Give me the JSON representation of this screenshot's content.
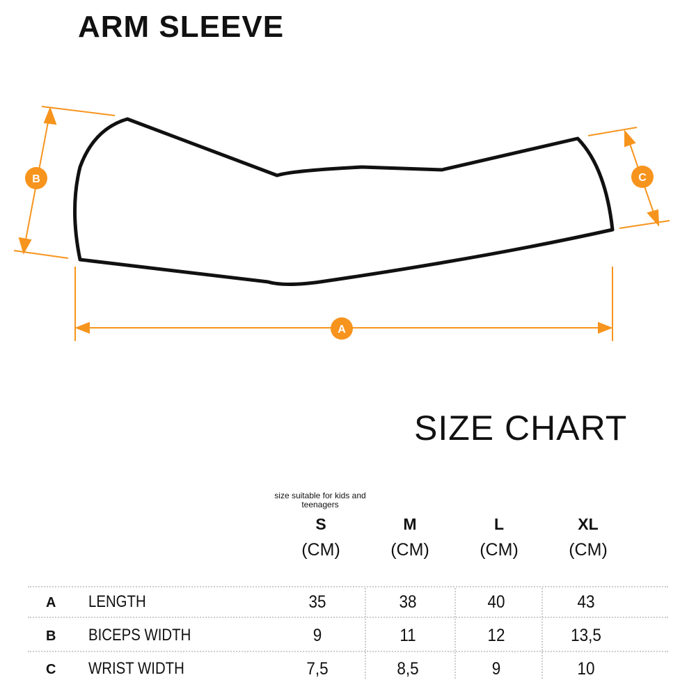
{
  "title": "ARM SLEEVE",
  "accent_color": "#f7941d",
  "diagram": {
    "labels": [
      "A",
      "B",
      "C"
    ]
  },
  "size_chart": {
    "title": "SIZE CHART",
    "note": "size suitable for kids and teenagers",
    "columns": [
      {
        "size": "S",
        "unit": "(CM)"
      },
      {
        "size": "M",
        "unit": "(CM)"
      },
      {
        "size": "L",
        "unit": "(CM)"
      },
      {
        "size": "XL",
        "unit": "(CM)"
      }
    ],
    "rows": [
      {
        "letter": "A",
        "label": "LENGTH",
        "values": [
          "35",
          "38",
          "40",
          "43"
        ]
      },
      {
        "letter": "B",
        "label": "BICEPS WIDTH",
        "values": [
          "9",
          "11",
          "12",
          "13,5"
        ]
      },
      {
        "letter": "C",
        "label": "WRIST WIDTH",
        "values": [
          "7,5",
          "8,5",
          "9",
          "10"
        ]
      }
    ]
  }
}
